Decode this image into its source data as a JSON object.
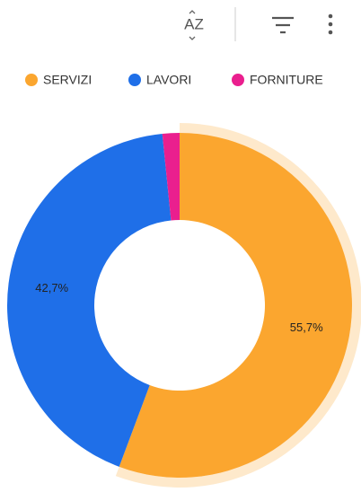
{
  "toolbar_sort_label": "AZ",
  "chart_data": {
    "type": "donut",
    "categories": [
      "SERVIZI",
      "LAVORI",
      "FORNITURE"
    ],
    "values": [
      55.7,
      42.7,
      1.6
    ],
    "value_labels": [
      "55,7%",
      "42,7%",
      null
    ],
    "colors": [
      "#fba62f",
      "#1f6fe8",
      "#ea1f8e"
    ],
    "highlight": 0,
    "legend": "top"
  }
}
